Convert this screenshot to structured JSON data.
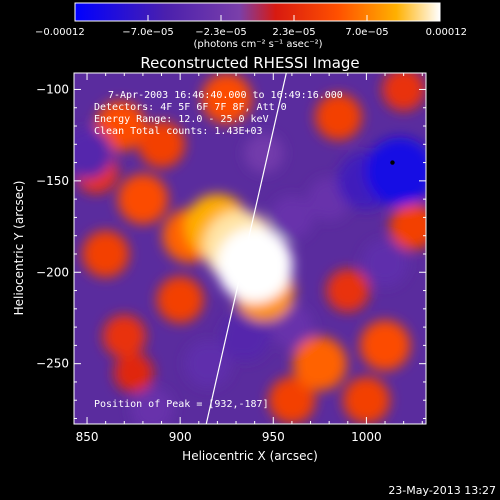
{
  "chart_data": {
    "type": "heatmap",
    "title": "Reconstructed RHESSI Image",
    "xlabel": "Heliocentric X (arcsec)",
    "ylabel": "Heliocentric Y (arcsec)",
    "xlim": [
      843,
      1032
    ],
    "ylim": [
      -283,
      -91
    ],
    "x_ticks": [
      850,
      900,
      950,
      1000
    ],
    "x_tick_labels": [
      "850",
      "900",
      "950",
      "1000"
    ],
    "y_ticks": [
      -100,
      -150,
      -200,
      -250
    ],
    "y_tick_labels": [
      "−100",
      "−150",
      "−200",
      "−250"
    ],
    "colorbar": {
      "tick_labels": [
        "−0.00012",
        "−7.0e−05",
        "−2.3e−05",
        "2.3e−05",
        "7.0e−05",
        "0.00012"
      ],
      "unit_label": "(photons cm⁻² s⁻¹ asec⁻²)",
      "range": [
        -0.00012,
        0.00012
      ],
      "colors": [
        "#0000ff",
        "#4b20ad",
        "#7a3faa",
        "#ff2a00",
        "#ff9900",
        "#ffffff"
      ]
    },
    "annotations": [
      "7-Apr-2003 16:46:40.000 to 16:49:16.000",
      "Detectors: 4F 5F 6F 7F 8F, Att 0",
      "Energy Range: 12.0 - 25.0 keV",
      "Clean     Total counts: 1.43E+03",
      "Position of Peak = [932,-187]"
    ],
    "peak": [
      932,
      -187
    ],
    "limb_line": [
      [
        914,
        -283
      ],
      [
        957,
        -91
      ]
    ],
    "marker_point": [
      1014,
      -140
    ],
    "blobs": [
      {
        "x": 940,
        "y": -196,
        "value": 0.00012
      },
      {
        "x": 932,
        "y": -186,
        "value": 0.00011
      },
      {
        "x": 920,
        "y": -175,
        "value": 9e-05
      },
      {
        "x": 905,
        "y": -180,
        "value": 6e-05
      },
      {
        "x": 945,
        "y": -210,
        "value": 8e-05
      },
      {
        "x": 880,
        "y": -160,
        "value": 5e-05
      },
      {
        "x": 868,
        "y": -120,
        "value": 5e-05
      },
      {
        "x": 890,
        "y": -130,
        "value": 4e-05
      },
      {
        "x": 925,
        "y": -105,
        "value": 5e-05
      },
      {
        "x": 860,
        "y": -190,
        "value": 4e-05
      },
      {
        "x": 855,
        "y": -145,
        "value": 3e-05
      },
      {
        "x": 900,
        "y": -215,
        "value": 4e-05
      },
      {
        "x": 975,
        "y": -250,
        "value": 6e-05
      },
      {
        "x": 1010,
        "y": -240,
        "value": 5e-05
      },
      {
        "x": 1000,
        "y": -270,
        "value": 4e-05
      },
      {
        "x": 960,
        "y": -270,
        "value": 4e-05
      },
      {
        "x": 990,
        "y": -210,
        "value": 3e-05
      },
      {
        "x": 1025,
        "y": -175,
        "value": 4e-05
      },
      {
        "x": 985,
        "y": -115,
        "value": 4e-05
      },
      {
        "x": 1020,
        "y": -100,
        "value": 3e-05
      },
      {
        "x": 875,
        "y": -255,
        "value": 2e-05
      },
      {
        "x": 870,
        "y": -235,
        "value": 3e-05
      },
      {
        "x": 1018,
        "y": -145,
        "value": -0.0001
      },
      {
        "x": 1000,
        "y": -150,
        "value": -7e-05
      },
      {
        "x": 960,
        "y": -170,
        "value": -3e-05
      },
      {
        "x": 980,
        "y": -160,
        "value": -3e-05
      },
      {
        "x": 935,
        "y": -235,
        "value": -5e-05
      },
      {
        "x": 915,
        "y": -250,
        "value": -4e-05
      },
      {
        "x": 850,
        "y": -135,
        "value": -5e-05
      },
      {
        "x": 960,
        "y": -230,
        "value": -3e-05
      },
      {
        "x": 1010,
        "y": -195,
        "value": -4e-05
      },
      {
        "x": 885,
        "y": -275,
        "value": -3e-05
      },
      {
        "x": 945,
        "y": -135,
        "value": -2e-05
      }
    ]
  },
  "footer": {
    "date": "23-May-2013 13:27"
  }
}
